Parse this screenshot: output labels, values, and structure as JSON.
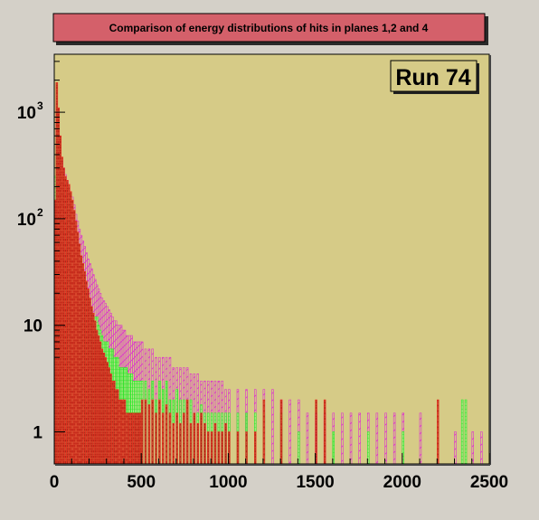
{
  "chart_data": {
    "type": "bar",
    "title": "Comparison of energy distributions of hits in planes 1,2 and 4",
    "stats_label": "Run 74",
    "xlabel": "",
    "ylabel": "",
    "xlim": [
      0,
      2500
    ],
    "ylim": [
      0.5,
      3500
    ],
    "yscale": "log",
    "x_ticks": [
      0,
      500,
      1000,
      1500,
      2000,
      2500
    ],
    "x_tick_labels": [
      "0",
      "500",
      "1000",
      "1500",
      "2000",
      "2500"
    ],
    "y_ticks": [
      {
        "value": 1000,
        "label_base": "10",
        "label_exp": "3"
      },
      {
        "value": 100,
        "label_base": "10",
        "label_exp": "2"
      },
      {
        "value": 10,
        "label_base": "10",
        "label_exp": ""
      },
      {
        "value": 1,
        "label_base": "1",
        "label_exp": ""
      }
    ],
    "bin_width": 10,
    "series": [
      {
        "color": "#ee3322",
        "fill": "bricks-red",
        "bins": [
          [
            0,
            150
          ],
          [
            10,
            1900
          ],
          [
            20,
            1100
          ],
          [
            30,
            600
          ],
          [
            40,
            380
          ],
          [
            50,
            300
          ],
          [
            60,
            250
          ],
          [
            70,
            230
          ],
          [
            80,
            210
          ],
          [
            90,
            180
          ],
          [
            100,
            150
          ],
          [
            110,
            120
          ],
          [
            120,
            95
          ],
          [
            130,
            75
          ],
          [
            140,
            58
          ],
          [
            150,
            45
          ],
          [
            160,
            38
          ],
          [
            170,
            32
          ],
          [
            180,
            26
          ],
          [
            190,
            22
          ],
          [
            200,
            18
          ],
          [
            210,
            15
          ],
          [
            220,
            13
          ],
          [
            230,
            11
          ],
          [
            240,
            9
          ],
          [
            250,
            8
          ],
          [
            260,
            7
          ],
          [
            270,
            6
          ],
          [
            280,
            5.5
          ],
          [
            290,
            5
          ],
          [
            300,
            4.5
          ],
          [
            310,
            4
          ],
          [
            320,
            3.5
          ],
          [
            330,
            3
          ],
          [
            340,
            3
          ],
          [
            350,
            2.5
          ],
          [
            360,
            2.5
          ],
          [
            370,
            2
          ],
          [
            380,
            2
          ],
          [
            390,
            2
          ],
          [
            400,
            2
          ],
          [
            410,
            1.5
          ],
          [
            420,
            1.5
          ],
          [
            430,
            1.5
          ],
          [
            440,
            1.5
          ],
          [
            450,
            1.5
          ],
          [
            460,
            1.5
          ],
          [
            470,
            1.5
          ],
          [
            480,
            1.5
          ],
          [
            490,
            1.5
          ],
          [
            500,
            2
          ],
          [
            520,
            2
          ],
          [
            540,
            1.8
          ],
          [
            560,
            2
          ],
          [
            580,
            1.5
          ],
          [
            600,
            2
          ],
          [
            620,
            1.5
          ],
          [
            640,
            1.8
          ],
          [
            660,
            1.5
          ],
          [
            680,
            1.2
          ],
          [
            700,
            1.5
          ],
          [
            720,
            1.2
          ],
          [
            740,
            1.5
          ],
          [
            760,
            2
          ],
          [
            780,
            1.2
          ],
          [
            800,
            1.5
          ],
          [
            820,
            1.2
          ],
          [
            840,
            1.5
          ],
          [
            860,
            1.2
          ],
          [
            880,
            1
          ],
          [
            900,
            1
          ],
          [
            920,
            1.2
          ],
          [
            940,
            1
          ],
          [
            960,
            1
          ],
          [
            980,
            1.2
          ],
          [
            1000,
            1
          ],
          [
            1050,
            1
          ],
          [
            1100,
            1
          ],
          [
            1150,
            1
          ],
          [
            1200,
            2
          ],
          [
            1300,
            2
          ],
          [
            1500,
            2
          ],
          [
            1550,
            2
          ],
          [
            2200,
            2
          ]
        ]
      },
      {
        "color": "#22ee22",
        "fill": "grid-green",
        "bins": [
          [
            0,
            250
          ],
          [
            10,
            600
          ],
          [
            20,
            400
          ],
          [
            30,
            300
          ],
          [
            40,
            260
          ],
          [
            50,
            180
          ],
          [
            60,
            150
          ],
          [
            70,
            130
          ],
          [
            80,
            110
          ],
          [
            90,
            95
          ],
          [
            100,
            85
          ],
          [
            110,
            70
          ],
          [
            120,
            55
          ],
          [
            130,
            45
          ],
          [
            140,
            35
          ],
          [
            150,
            30
          ],
          [
            160,
            24
          ],
          [
            170,
            22
          ],
          [
            180,
            18
          ],
          [
            190,
            16
          ],
          [
            200,
            15
          ],
          [
            210,
            14
          ],
          [
            220,
            13
          ],
          [
            230,
            12
          ],
          [
            240,
            12
          ],
          [
            250,
            10
          ],
          [
            260,
            9
          ],
          [
            270,
            8
          ],
          [
            280,
            7
          ],
          [
            290,
            7
          ],
          [
            300,
            7
          ],
          [
            310,
            6
          ],
          [
            320,
            6
          ],
          [
            330,
            6
          ],
          [
            340,
            5
          ],
          [
            350,
            5
          ],
          [
            360,
            5
          ],
          [
            370,
            4
          ],
          [
            380,
            4
          ],
          [
            390,
            4
          ],
          [
            400,
            4
          ],
          [
            410,
            4
          ],
          [
            420,
            3.5
          ],
          [
            430,
            3.5
          ],
          [
            440,
            3.5
          ],
          [
            450,
            3
          ],
          [
            460,
            3
          ],
          [
            470,
            3
          ],
          [
            480,
            3
          ],
          [
            490,
            3
          ],
          [
            500,
            3
          ],
          [
            520,
            3
          ],
          [
            540,
            2.5
          ],
          [
            560,
            3
          ],
          [
            580,
            2
          ],
          [
            600,
            3
          ],
          [
            620,
            2.5
          ],
          [
            640,
            3
          ],
          [
            660,
            2
          ],
          [
            680,
            2
          ],
          [
            700,
            2.5
          ],
          [
            720,
            2
          ],
          [
            740,
            2
          ],
          [
            760,
            2
          ],
          [
            780,
            2
          ],
          [
            800,
            1.5
          ],
          [
            820,
            1.5
          ],
          [
            840,
            1.8
          ],
          [
            860,
            1.5
          ],
          [
            880,
            1.5
          ],
          [
            900,
            1.5
          ],
          [
            920,
            1.5
          ],
          [
            940,
            1.5
          ],
          [
            960,
            1.5
          ],
          [
            980,
            1.5
          ],
          [
            1000,
            1.5
          ],
          [
            1050,
            1.5
          ],
          [
            1100,
            1.5
          ],
          [
            1150,
            1.5
          ],
          [
            1200,
            1.5
          ],
          [
            1300,
            1.5
          ],
          [
            1400,
            1
          ],
          [
            1600,
            1
          ],
          [
            1800,
            1
          ],
          [
            2000,
            1
          ],
          [
            2340,
            2
          ],
          [
            2360,
            2
          ]
        ]
      },
      {
        "color": "#dd33cc",
        "fill": "hatch-magenta",
        "bins": [
          [
            0,
            200
          ],
          [
            10,
            800
          ],
          [
            20,
            500
          ],
          [
            30,
            400
          ],
          [
            40,
            350
          ],
          [
            50,
            300
          ],
          [
            60,
            260
          ],
          [
            70,
            230
          ],
          [
            80,
            200
          ],
          [
            90,
            175
          ],
          [
            100,
            160
          ],
          [
            110,
            135
          ],
          [
            120,
            110
          ],
          [
            130,
            95
          ],
          [
            140,
            80
          ],
          [
            150,
            70
          ],
          [
            160,
            62
          ],
          [
            170,
            55
          ],
          [
            180,
            48
          ],
          [
            190,
            42
          ],
          [
            200,
            38
          ],
          [
            210,
            34
          ],
          [
            220,
            30
          ],
          [
            230,
            27
          ],
          [
            240,
            24
          ],
          [
            250,
            22
          ],
          [
            260,
            20
          ],
          [
            270,
            18
          ],
          [
            280,
            17
          ],
          [
            290,
            16
          ],
          [
            300,
            15
          ],
          [
            310,
            14
          ],
          [
            320,
            13
          ],
          [
            330,
            12
          ],
          [
            340,
            11
          ],
          [
            350,
            11
          ],
          [
            360,
            10
          ],
          [
            370,
            10
          ],
          [
            380,
            10
          ],
          [
            390,
            9
          ],
          [
            400,
            9
          ],
          [
            410,
            8
          ],
          [
            420,
            8
          ],
          [
            430,
            8
          ],
          [
            440,
            8
          ],
          [
            450,
            7
          ],
          [
            460,
            7
          ],
          [
            470,
            7
          ],
          [
            480,
            7
          ],
          [
            490,
            7
          ],
          [
            500,
            7
          ],
          [
            520,
            6
          ],
          [
            540,
            6
          ],
          [
            560,
            6
          ],
          [
            580,
            5
          ],
          [
            600,
            5
          ],
          [
            620,
            5
          ],
          [
            640,
            5
          ],
          [
            660,
            5
          ],
          [
            680,
            4
          ],
          [
            700,
            4
          ],
          [
            720,
            4
          ],
          [
            740,
            4
          ],
          [
            760,
            4
          ],
          [
            780,
            3.5
          ],
          [
            800,
            3.5
          ],
          [
            820,
            3.5
          ],
          [
            840,
            3
          ],
          [
            860,
            3
          ],
          [
            880,
            3
          ],
          [
            900,
            3
          ],
          [
            920,
            3
          ],
          [
            940,
            3
          ],
          [
            960,
            3
          ],
          [
            980,
            2.5
          ],
          [
            1000,
            2.5
          ],
          [
            1050,
            2.5
          ],
          [
            1100,
            2.5
          ],
          [
            1150,
            2.5
          ],
          [
            1200,
            2.5
          ],
          [
            1250,
            2.5
          ],
          [
            1300,
            2
          ],
          [
            1350,
            2
          ],
          [
            1400,
            2
          ],
          [
            1450,
            1.5
          ],
          [
            1500,
            1.5
          ],
          [
            1550,
            1.5
          ],
          [
            1600,
            1.5
          ],
          [
            1650,
            1.5
          ],
          [
            1700,
            1.5
          ],
          [
            1750,
            1.5
          ],
          [
            1800,
            1.5
          ],
          [
            1850,
            1.5
          ],
          [
            1900,
            1.5
          ],
          [
            1950,
            1.5
          ],
          [
            2000,
            1.5
          ],
          [
            2100,
            1.5
          ],
          [
            2200,
            1
          ],
          [
            2300,
            1
          ],
          [
            2400,
            1
          ],
          [
            2450,
            1
          ]
        ]
      }
    ]
  }
}
